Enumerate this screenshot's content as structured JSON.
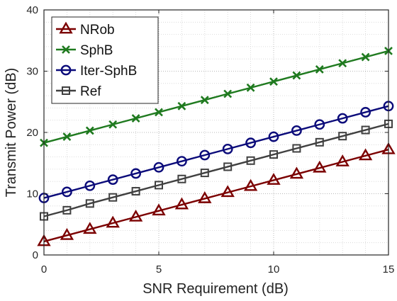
{
  "chart_data": {
    "type": "line",
    "title": "",
    "xlabel": "SNR Requirement (dB)",
    "ylabel": "Transmit Power (dB)",
    "xlim": [
      0,
      15
    ],
    "ylim": [
      0,
      40
    ],
    "x_ticks": [
      0,
      5,
      10,
      15
    ],
    "y_ticks": [
      0,
      10,
      20,
      30,
      40
    ],
    "grid": "on (dotted, major and minor)",
    "legend_position": "top-left",
    "x": [
      0,
      1,
      2,
      3,
      4,
      5,
      6,
      7,
      8,
      9,
      10,
      11,
      12,
      13,
      14,
      15
    ],
    "series": [
      {
        "name": "NRob",
        "color": "#7b0000",
        "marker": "triangle",
        "values": [
          2.2,
          3.2,
          4.2,
          5.2,
          6.2,
          7.2,
          8.2,
          9.2,
          10.2,
          11.2,
          12.2,
          13.2,
          14.2,
          15.2,
          16.2,
          17.2
        ]
      },
      {
        "name": "SphB",
        "color": "#1f7a1f",
        "marker": "x",
        "values": [
          18.3,
          19.3,
          20.3,
          21.3,
          22.3,
          23.3,
          24.3,
          25.3,
          26.3,
          27.3,
          28.3,
          29.3,
          30.3,
          31.3,
          32.3,
          33.3
        ]
      },
      {
        "name": "Iter-SphB",
        "color": "#0b0b7a",
        "marker": "circle",
        "values": [
          9.3,
          10.3,
          11.3,
          12.3,
          13.3,
          14.3,
          15.3,
          16.3,
          17.3,
          18.3,
          19.3,
          20.3,
          21.3,
          22.3,
          23.3,
          24.3
        ]
      },
      {
        "name": "Ref",
        "color": "#404040",
        "marker": "square",
        "values": [
          6.3,
          7.3,
          8.4,
          9.4,
          10.4,
          11.4,
          12.4,
          13.4,
          14.4,
          15.4,
          16.4,
          17.4,
          18.4,
          19.4,
          20.4,
          21.4
        ]
      }
    ]
  }
}
